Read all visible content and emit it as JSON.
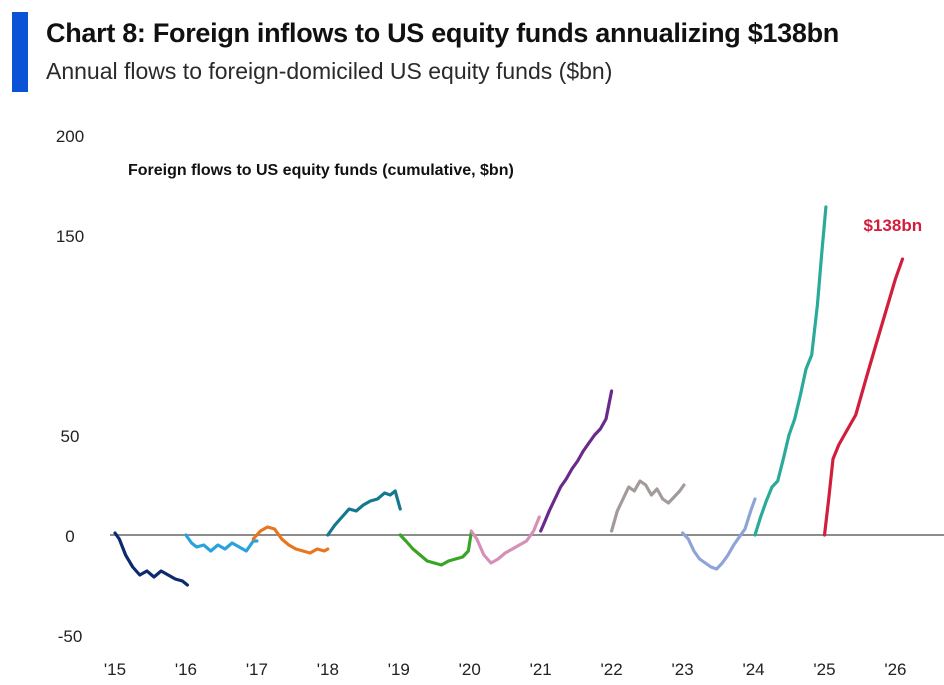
{
  "header": {
    "title": "Chart 8: Foreign inflows to US equity funds annualizing $138bn",
    "subtitle": "Annual flows to foreign-domiciled US equity funds ($bn)"
  },
  "colors": {
    "accent": "#0a52d6",
    "zero_line": "#8c8c8c",
    "annotation": "#d11e3c"
  },
  "chart_data": {
    "type": "line",
    "title": "Foreign flows to US equity funds (cumulative, $bn)",
    "xlabel": "",
    "ylabel": "",
    "xlim": [
      2015,
      2026.6
    ],
    "ylim": [
      -50,
      200
    ],
    "yticks": [
      -50,
      0,
      50,
      150,
      200
    ],
    "yticks_labels": [
      "-50",
      "0",
      "50",
      "150",
      "200"
    ],
    "xticks": [
      2015,
      2016,
      2017,
      2018,
      2019,
      2020,
      2021,
      2022,
      2023,
      2024,
      2025,
      2026
    ],
    "xticks_labels": [
      "'15",
      "'16",
      "'17",
      "'18",
      "'19",
      "'20",
      "'21",
      "'22",
      "'23",
      "'24",
      "'25",
      "'26"
    ],
    "grid": false,
    "legend": "none",
    "series": [
      {
        "color": "#0c2a6e",
        "x": [
          2015.0,
          2015.06,
          2015.15,
          2015.25,
          2015.35,
          2015.45,
          2015.55,
          2015.65,
          2015.75,
          2015.85,
          2015.95,
          2016.02
        ],
        "y": [
          1,
          -2,
          -10,
          -16,
          -20,
          -18,
          -21,
          -18,
          -20,
          -22,
          -23,
          -25
        ]
      },
      {
        "color": "#2aa3dd",
        "x": [
          2016.0,
          2016.08,
          2016.15,
          2016.25,
          2016.35,
          2016.45,
          2016.55,
          2016.65,
          2016.75,
          2016.85,
          2016.95,
          2017.0
        ],
        "y": [
          0,
          -4,
          -6,
          -5,
          -8,
          -5,
          -7,
          -4,
          -6,
          -8,
          -3,
          -3
        ]
      },
      {
        "color": "#e8761e",
        "x": [
          2016.95,
          2017.05,
          2017.15,
          2017.25,
          2017.35,
          2017.45,
          2017.55,
          2017.65,
          2017.75,
          2017.85,
          2017.95,
          2018.0
        ],
        "y": [
          -2,
          2,
          4,
          3,
          -2,
          -5,
          -7,
          -8,
          -9,
          -7,
          -8,
          -7
        ]
      },
      {
        "color": "#15788f",
        "x": [
          2018.0,
          2018.1,
          2018.2,
          2018.3,
          2018.4,
          2018.5,
          2018.6,
          2018.7,
          2018.8,
          2018.88,
          2018.95,
          2019.02
        ],
        "y": [
          0,
          5,
          9,
          13,
          12,
          15,
          17,
          18,
          21,
          20,
          22,
          13
        ]
      },
      {
        "color": "#3aa525",
        "x": [
          2019.02,
          2019.1,
          2019.2,
          2019.3,
          2019.4,
          2019.5,
          2019.6,
          2019.7,
          2019.8,
          2019.9,
          2019.98,
          2020.02
        ],
        "y": [
          0,
          -3,
          -7,
          -10,
          -13,
          -14,
          -15,
          -13,
          -12,
          -11,
          -8,
          1
        ]
      },
      {
        "color": "#d690b8",
        "x": [
          2020.02,
          2020.1,
          2020.2,
          2020.3,
          2020.4,
          2020.5,
          2020.6,
          2020.7,
          2020.8,
          2020.9,
          2020.98
        ],
        "y": [
          2,
          -2,
          -10,
          -14,
          -12,
          -9,
          -7,
          -5,
          -3,
          2,
          9
        ]
      },
      {
        "color": "#6a2a8c",
        "x": [
          2021.0,
          2021.05,
          2021.12,
          2021.2,
          2021.28,
          2021.36,
          2021.44,
          2021.52,
          2021.6,
          2021.68,
          2021.76,
          2021.84,
          2021.92,
          2022.0
        ],
        "y": [
          2,
          6,
          12,
          18,
          24,
          28,
          33,
          37,
          42,
          46,
          50,
          53,
          58,
          72
        ]
      },
      {
        "color": "#a39a9a",
        "x": [
          2022.0,
          2022.08,
          2022.16,
          2022.24,
          2022.32,
          2022.4,
          2022.48,
          2022.56,
          2022.64,
          2022.72,
          2022.8,
          2022.88,
          2022.96,
          2023.02
        ],
        "y": [
          2,
          12,
          18,
          24,
          22,
          27,
          25,
          20,
          23,
          18,
          16,
          19,
          22,
          25
        ]
      },
      {
        "color": "#8ea4d6",
        "x": [
          2023.0,
          2023.08,
          2023.16,
          2023.24,
          2023.32,
          2023.4,
          2023.48,
          2023.56,
          2023.64,
          2023.72,
          2023.8,
          2023.88,
          2023.96,
          2024.02
        ],
        "y": [
          1,
          -2,
          -8,
          -12,
          -14,
          -16,
          -17,
          -14,
          -10,
          -5,
          -1,
          3,
          12,
          18
        ]
      },
      {
        "color": "#2aab9a",
        "x": [
          2024.02,
          2024.1,
          2024.18,
          2024.26,
          2024.34,
          2024.42,
          2024.5,
          2024.58,
          2024.66,
          2024.74,
          2024.82,
          2024.9,
          2024.96,
          2025.02
        ],
        "y": [
          0,
          9,
          17,
          24,
          27,
          38,
          50,
          58,
          70,
          83,
          90,
          115,
          140,
          164
        ]
      },
      {
        "color": "#d11e3c",
        "x": [
          2025.0,
          2025.06,
          2025.12,
          2025.2,
          2025.28,
          2025.36,
          2025.44,
          2025.52,
          2025.6,
          2025.7,
          2025.8,
          2025.9,
          2026.0,
          2026.1
        ],
        "y": [
          0,
          18,
          38,
          45,
          50,
          55,
          60,
          70,
          80,
          92,
          104,
          116,
          128,
          138
        ]
      }
    ],
    "annotation": {
      "text": "$138bn",
      "x": 2025.55,
      "y": 152
    }
  }
}
